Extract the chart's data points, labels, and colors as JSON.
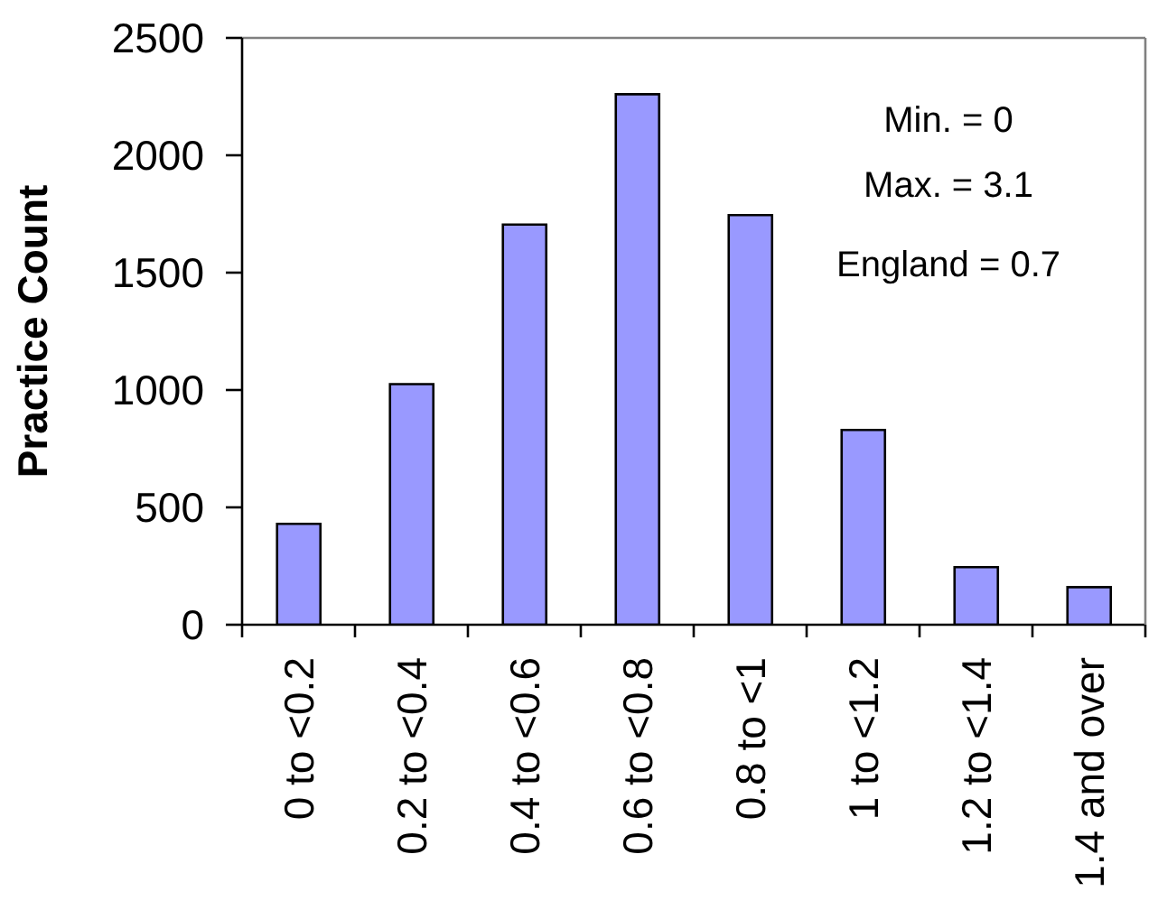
{
  "chart_data": {
    "type": "bar",
    "ylabel": "Practice Count",
    "categories": [
      "0 to <0.2",
      "0.2 to <0.4",
      "0.4 to <0.6",
      "0.6 to <0.8",
      "0.8 to <1",
      "1 to <1.2",
      "1.2 to <1.4",
      "1.4 and over"
    ],
    "values": [
      430,
      1025,
      1705,
      2260,
      1745,
      830,
      245,
      160
    ],
    "color": "#9999ff",
    "ylim": [
      0,
      2500
    ],
    "yticks": [
      0,
      500,
      1000,
      1500,
      2000,
      2500
    ],
    "annotations": [
      "Min. = 0",
      "Max. = 3.1",
      "England = 0.7"
    ]
  }
}
